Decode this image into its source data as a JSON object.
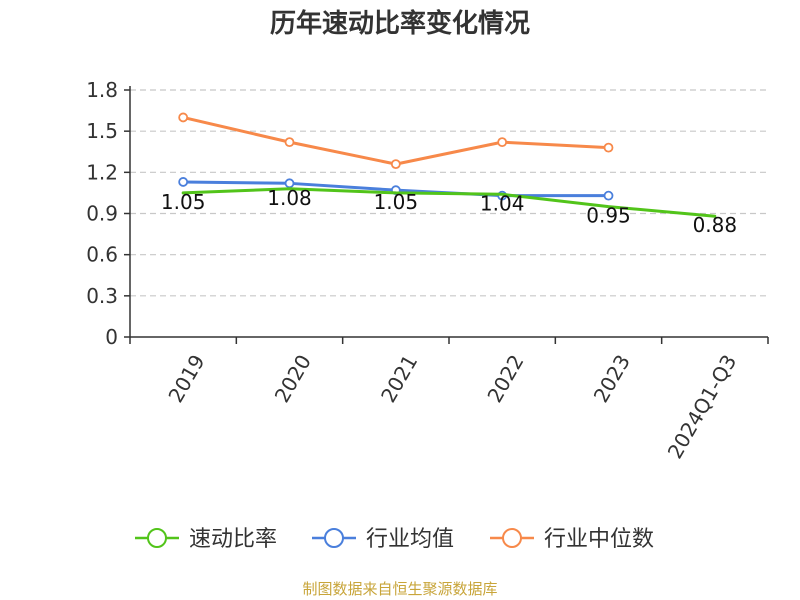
{
  "chart_data": {
    "type": "line",
    "title": "历年速动比率变化情况",
    "categories": [
      "2019",
      "2020",
      "2021",
      "2022",
      "2023",
      "2024Q1-Q3"
    ],
    "ylim": [
      0,
      1.8
    ],
    "yticks": [
      "0",
      "0.3",
      "0.6",
      "0.9",
      "1.2",
      "1.5",
      "1.8"
    ],
    "grid": true,
    "legend_position": "bottom",
    "series": [
      {
        "name": "速动比率",
        "color": "#52c41a",
        "values": [
          1.05,
          1.08,
          1.05,
          1.04,
          0.95,
          0.88
        ],
        "labels": [
          "1.05",
          "1.08",
          "1.05",
          "1.04",
          "0.95",
          "0.88"
        ],
        "markers": false
      },
      {
        "name": "行业均值",
        "color": "#4a7fdc",
        "values": [
          1.13,
          1.12,
          1.07,
          1.03,
          1.03,
          null
        ],
        "markers": true
      },
      {
        "name": "行业中位数",
        "color": "#f7894a",
        "values": [
          1.6,
          1.42,
          1.26,
          1.42,
          1.38,
          null
        ],
        "markers": true
      }
    ]
  },
  "source_note": "制图数据来自恒生聚源数据库"
}
